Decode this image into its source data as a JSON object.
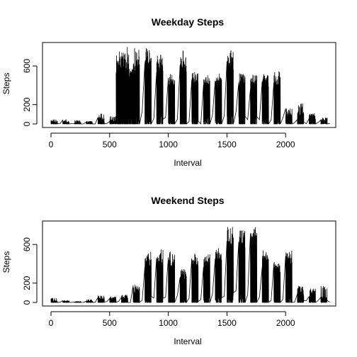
{
  "chart_data": [
    {
      "type": "line",
      "title": "Weekday Steps",
      "xlabel": "Interval",
      "ylabel": "Steps",
      "xlim": [
        0,
        2355
      ],
      "ylim": [
        0,
        806
      ],
      "xticks": [
        0,
        500,
        1000,
        1500,
        2000
      ],
      "yticks": [
        0,
        200,
        600
      ],
      "grid": false,
      "legend": "none",
      "series": [
        {
          "blocks": [
            {
              "x0": 0,
              "x1": 55,
              "peaks": [
                40,
                15,
                30,
                55,
                10,
                45,
                25
              ]
            },
            {
              "x0": 100,
              "x1": 155,
              "peaks": [
                20,
                45,
                10,
                30
              ]
            },
            {
              "x0": 200,
              "x1": 255,
              "peaks": [
                15,
                35,
                5
              ]
            },
            {
              "x0": 300,
              "x1": 355,
              "peaks": [
                30,
                10,
                25
              ]
            },
            {
              "x0": 400,
              "x1": 455,
              "peaks": [
                60,
                25,
                110,
                40,
                70
              ]
            },
            {
              "x0": 500,
              "x1": 555,
              "peaks": [
                30,
                80,
                45
              ]
            },
            {
              "x0": 555,
              "x1": 600,
              "peaks": [
                780,
                520,
                760,
                640,
                700,
                580,
                735
              ]
            },
            {
              "x0": 600,
              "x1": 655,
              "peaks": [
                790,
                650,
                720,
                800,
                600,
                690,
                750
              ]
            },
            {
              "x0": 655,
              "x1": 700,
              "peaks": [
                560,
                720,
                610,
                680,
                540
              ]
            },
            {
              "x0": 700,
              "x1": 755,
              "peaks": [
                760,
                680,
                790,
                620,
                710,
                650
              ]
            },
            {
              "x0": 800,
              "x1": 855,
              "peaks": [
                780,
                720,
                800,
                690,
                760,
                740
              ]
            },
            {
              "x0": 900,
              "x1": 955,
              "peaks": [
                720,
                660,
                750,
                600,
                690
              ]
            },
            {
              "x0": 1000,
              "x1": 1055,
              "peaks": [
                510,
                430,
                540,
                470,
                520
              ]
            },
            {
              "x0": 1100,
              "x1": 1155,
              "peaks": [
                760,
                640,
                720,
                680,
                600
              ]
            },
            {
              "x0": 1200,
              "x1": 1255,
              "peaks": [
                540,
                480,
                520,
                450
              ]
            },
            {
              "x0": 1300,
              "x1": 1355,
              "peaks": [
                520,
                460,
                500,
                430,
                480
              ]
            },
            {
              "x0": 1400,
              "x1": 1455,
              "peaks": [
                540,
                480,
                510,
                460
              ]
            },
            {
              "x0": 1500,
              "x1": 1555,
              "peaks": [
                760,
                790,
                700,
                770,
                730,
                680
              ]
            },
            {
              "x0": 1600,
              "x1": 1655,
              "peaks": [
                530,
                480,
                510,
                460
              ]
            },
            {
              "x0": 1700,
              "x1": 1755,
              "peaks": [
                520,
                470,
                500,
                440,
                510
              ]
            },
            {
              "x0": 1800,
              "x1": 1855,
              "peaks": [
                520,
                470,
                540,
                500
              ]
            },
            {
              "x0": 1900,
              "x1": 1955,
              "peaks": [
                560,
                480,
                540,
                500,
                470
              ]
            },
            {
              "x0": 2000,
              "x1": 2055,
              "peaks": [
                90,
                160,
                70,
                120
              ]
            },
            {
              "x0": 2100,
              "x1": 2155,
              "peaks": [
                140,
                90,
                210,
                60,
                120
              ]
            },
            {
              "x0": 2200,
              "x1": 2255,
              "peaks": [
                110,
                60,
                90
              ]
            },
            {
              "x0": 2300,
              "x1": 2355,
              "peaks": [
                70,
                30,
                50
              ]
            }
          ]
        }
      ]
    },
    {
      "type": "line",
      "title": "Weekend Steps",
      "xlabel": "Interval",
      "ylabel": "Steps",
      "xlim": [
        0,
        2355
      ],
      "ylim": [
        0,
        806
      ],
      "xticks": [
        0,
        500,
        1000,
        1500,
        2000
      ],
      "yticks": [
        0,
        200,
        600
      ],
      "grid": false,
      "legend": "none",
      "series": [
        {
          "blocks": [
            {
              "x0": 0,
              "x1": 55,
              "peaks": [
                10,
                45,
                5,
                20
              ]
            },
            {
              "x0": 100,
              "x1": 155,
              "peaks": [
                20,
                10,
                15
              ]
            },
            {
              "x0": 200,
              "x1": 255,
              "peaks": [
                10,
                5
              ]
            },
            {
              "x0": 300,
              "x1": 355,
              "peaks": [
                15,
                30,
                10
              ]
            },
            {
              "x0": 400,
              "x1": 455,
              "peaks": [
                40,
                70,
                20,
                55
              ]
            },
            {
              "x0": 500,
              "x1": 555,
              "peaks": [
                50,
                30,
                60
              ]
            },
            {
              "x0": 600,
              "x1": 655,
              "peaks": [
                60,
                80,
                45
              ]
            },
            {
              "x0": 700,
              "x1": 755,
              "peaks": [
                110,
                180,
                90,
                150
              ]
            },
            {
              "x0": 800,
              "x1": 855,
              "peaks": [
                540,
                460,
                550,
                500,
                480
              ]
            },
            {
              "x0": 900,
              "x1": 955,
              "peaks": [
                550,
                480,
                520,
                460
              ]
            },
            {
              "x0": 1000,
              "x1": 1055,
              "peaks": [
                500,
                420,
                540,
                470
              ]
            },
            {
              "x0": 1100,
              "x1": 1155,
              "peaks": [
                330,
                280,
                350,
                300
              ]
            },
            {
              "x0": 1200,
              "x1": 1255,
              "peaks": [
                500,
                440,
                520,
                470
              ]
            },
            {
              "x0": 1300,
              "x1": 1355,
              "peaks": [
                530,
                470,
                510,
                450
              ]
            },
            {
              "x0": 1400,
              "x1": 1455,
              "peaks": [
                560,
                500,
                540
              ]
            },
            {
              "x0": 1500,
              "x1": 1555,
              "peaks": [
                800,
                720,
                760,
                680
              ]
            },
            {
              "x0": 1600,
              "x1": 1655,
              "peaks": [
                790,
                740,
                800,
                700
              ]
            },
            {
              "x0": 1700,
              "x1": 1755,
              "peaks": [
                790,
                720,
                760
              ]
            },
            {
              "x0": 1800,
              "x1": 1855,
              "peaks": [
                530,
                480,
                540,
                500
              ]
            },
            {
              "x0": 1900,
              "x1": 1955,
              "peaks": [
                420,
                380,
                440,
                400
              ]
            },
            {
              "x0": 2000,
              "x1": 2055,
              "peaks": [
                520,
                460,
                540,
                480
              ]
            },
            {
              "x0": 2100,
              "x1": 2155,
              "peaks": [
                180,
                110,
                160,
                90
              ]
            },
            {
              "x0": 2200,
              "x1": 2255,
              "peaks": [
                120,
                70,
                150
              ]
            },
            {
              "x0": 2300,
              "x1": 2355,
              "peaks": [
                170,
                60,
                30
              ]
            }
          ]
        }
      ]
    }
  ]
}
